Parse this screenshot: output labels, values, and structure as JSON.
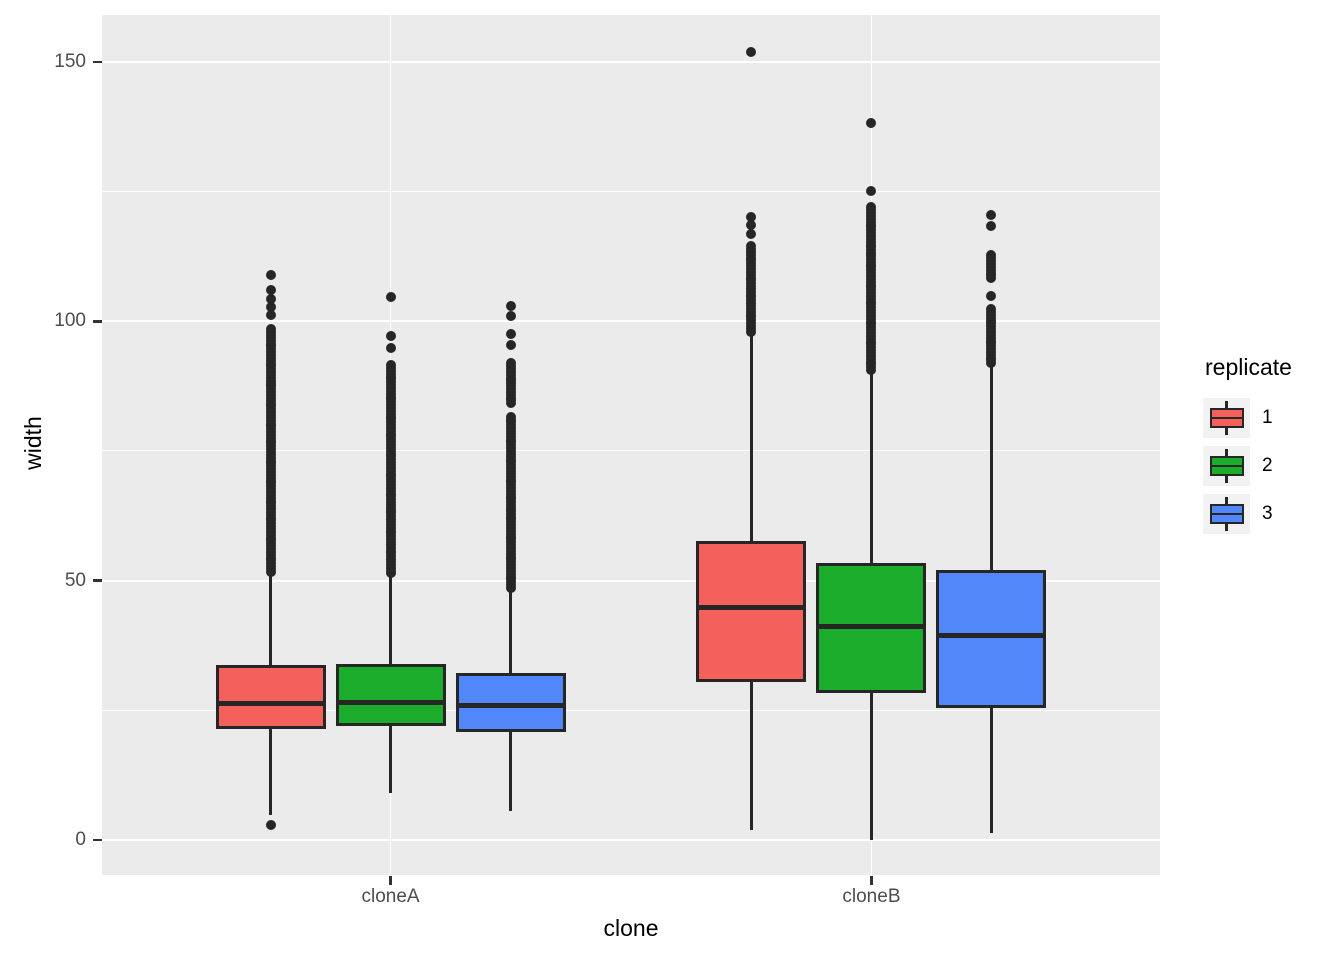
{
  "chart_data": {
    "type": "boxplot",
    "title": "",
    "xlabel": "clone",
    "ylabel": "width",
    "categories": [
      "cloneA",
      "cloneB"
    ],
    "x_tick_labels": [
      "cloneA",
      "cloneB"
    ],
    "y_tick_labels": [
      "0",
      "50",
      "100",
      "150"
    ],
    "y_axis": {
      "major_ticks": [
        0,
        50,
        100,
        150
      ],
      "minor_ticks": [
        25,
        75,
        125
      ],
      "range": [
        -6.7,
        159.1
      ]
    },
    "panel": {
      "background": "#EBEBEB",
      "grid_color": "#FFFFFF",
      "key_background": "#F2F2F2"
    },
    "line_color": "#262626",
    "axis_text_color": "#4D4D4D",
    "legend": {
      "title": "replicate",
      "position": "right",
      "entries": [
        {
          "label": "1",
          "color": "#F4605C"
        },
        {
          "label": "2",
          "color": "#1BAC2C"
        },
        {
          "label": "3",
          "color": "#5287FA"
        }
      ]
    },
    "series": [
      {
        "clone": "cloneA",
        "replicate": "1",
        "color": "#F4605C",
        "q1": 21.4,
        "median": 26.4,
        "q3": 33.8,
        "whisker_low": 4.8,
        "whisker_high": 51.7,
        "outliers_low": [
          2.9
        ],
        "outlier_bands_high": [
          [
            51.7,
            98.5
          ]
        ],
        "outliers_high": [
          101.2,
          102.8,
          104.4,
          106.0,
          108.9
        ]
      },
      {
        "clone": "cloneA",
        "replicate": "2",
        "color": "#1BAC2C",
        "q1": 22.0,
        "median": 26.5,
        "q3": 34.0,
        "whisker_low": 9.1,
        "whisker_high": 51.4,
        "outliers_low": [],
        "outlier_bands_high": [
          [
            51.4,
            91.6
          ]
        ],
        "outliers_high": [
          94.9,
          97.2,
          104.6
        ]
      },
      {
        "clone": "cloneA",
        "replicate": "3",
        "color": "#5287FA",
        "q1": 20.8,
        "median": 25.9,
        "q3": 32.2,
        "whisker_low": 5.6,
        "whisker_high": 48.6,
        "outliers_low": [],
        "outlier_bands_high": [
          [
            48.6,
            81.9
          ],
          [
            84.2,
            91.9
          ]
        ],
        "outliers_high": [
          95.4,
          97.6,
          101.0,
          103.0
        ]
      },
      {
        "clone": "cloneB",
        "replicate": "1",
        "color": "#F4605C",
        "q1": 30.4,
        "median": 44.8,
        "q3": 57.6,
        "whisker_low": 1.9,
        "whisker_high": 98.0,
        "outliers_low": [],
        "outlier_bands_high": [
          [
            98.0,
            114.5
          ]
        ],
        "outliers_high": [
          116.8,
          118.5,
          120.2,
          151.9
        ]
      },
      {
        "clone": "cloneB",
        "replicate": "2",
        "color": "#1BAC2C",
        "q1": 28.3,
        "median": 41.2,
        "q3": 53.5,
        "whisker_low": 0.0,
        "whisker_high": 90.6,
        "outliers_low": [],
        "outlier_bands_high": [
          [
            90.6,
            122.1
          ]
        ],
        "outliers_high": [
          125.1,
          138.2
        ]
      },
      {
        "clone": "cloneB",
        "replicate": "3",
        "color": "#5287FA",
        "q1": 25.4,
        "median": 39.4,
        "q3": 52.1,
        "whisker_low": 1.4,
        "whisker_high": 91.9,
        "outliers_low": [],
        "outlier_bands_high": [
          [
            91.9,
            102.8
          ],
          [
            108.3,
            112.8
          ]
        ],
        "outliers_high": [
          104.8,
          118.3,
          120.5
        ]
      }
    ]
  }
}
